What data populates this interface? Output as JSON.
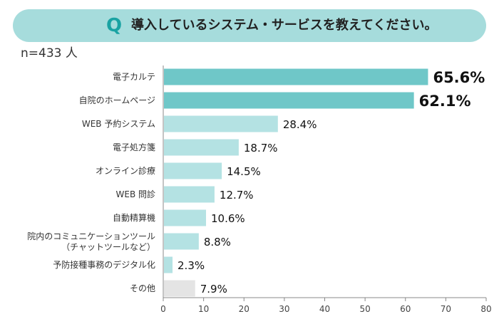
{
  "question": {
    "marker": "Q",
    "text": "導入しているシステム・サービスを教えてください。"
  },
  "sample_size": "n=433 人",
  "colors": {
    "highlight": "#6fc7c8",
    "normal": "#b4e2e3",
    "other": "#e4e4e4",
    "banner": "#a6dcdc",
    "marker": "#1aa3a3"
  },
  "chart_data": {
    "type": "bar",
    "orientation": "horizontal",
    "categories": [
      "電子カルテ",
      "自院のホームページ",
      "WEB 予約システム",
      "電子処方箋",
      "オンライン診療",
      "WEB 問診",
      "自動精算機",
      [
        "院内のコミュニケーションツール",
        "（チャットツールなど）"
      ],
      "予防接種事務のデジタル化",
      "その他"
    ],
    "values": [
      65.6,
      62.1,
      28.4,
      18.7,
      14.5,
      12.7,
      10.6,
      8.8,
      2.3,
      7.9
    ],
    "value_labels": [
      "65.6%",
      "62.1%",
      "28.4%",
      "18.7%",
      "14.5%",
      "12.7%",
      "10.6%",
      "8.8%",
      "2.3%",
      "7.9%"
    ],
    "bar_styles": [
      "highlight",
      "highlight",
      "normal",
      "normal",
      "normal",
      "normal",
      "normal",
      "normal",
      "normal",
      "other"
    ],
    "xlim": [
      0,
      80
    ],
    "xticks": [
      0,
      10,
      20,
      30,
      40,
      50,
      60,
      70,
      80
    ],
    "grid": false,
    "legend": "none"
  }
}
